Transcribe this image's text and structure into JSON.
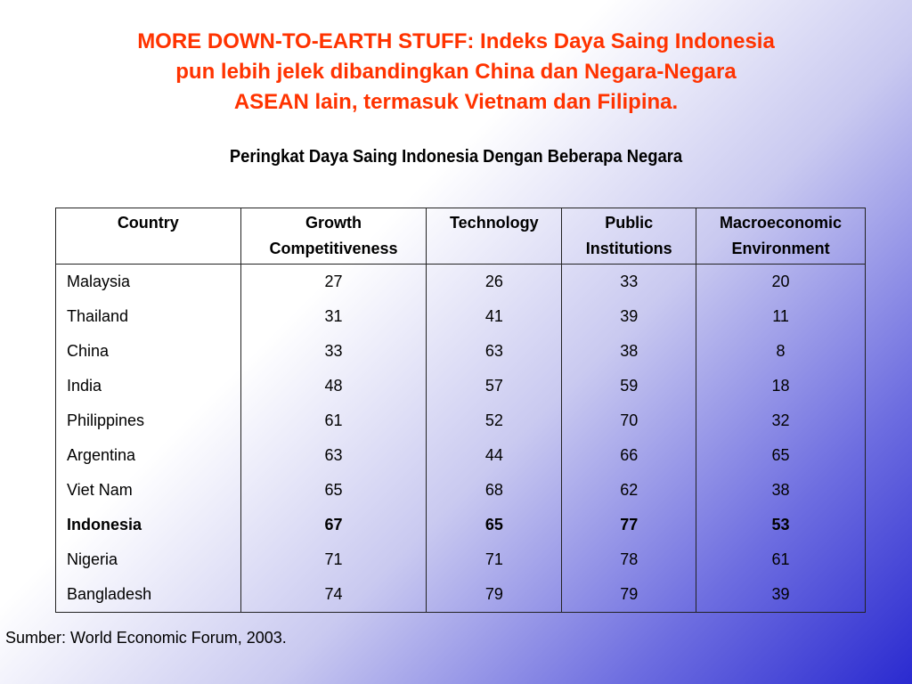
{
  "title_lines": [
    "MORE DOWN-TO-EARTH STUFF: Indeks Daya Saing Indonesia",
    "pun lebih jelek dibandingkan China dan Negara-Negara",
    "ASEAN lain, termasuk Vietnam dan Filipina."
  ],
  "subtitle": "Peringkat Daya Saing Indonesia Dengan Beberapa Negara",
  "table": {
    "headers": [
      [
        "Country"
      ],
      [
        "Growth",
        "Competitiveness"
      ],
      [
        "Technology"
      ],
      [
        "Public",
        "Institutions"
      ],
      [
        "Macroeconomic",
        "Environment"
      ]
    ],
    "rows": [
      [
        "Malaysia",
        "27",
        "26",
        "33",
        "20"
      ],
      [
        "Thailand",
        "31",
        "41",
        "39",
        "11"
      ],
      [
        "China",
        "33",
        "63",
        "38",
        "8"
      ],
      [
        "India",
        "48",
        "57",
        "59",
        "18"
      ],
      [
        "Philippines",
        "61",
        "52",
        "70",
        "32"
      ],
      [
        "Argentina",
        "63",
        "44",
        "66",
        "65"
      ],
      [
        "Viet Nam",
        "65",
        "68",
        "62",
        "38"
      ],
      [
        "Indonesia",
        "67",
        "65",
        "77",
        "53"
      ],
      [
        "Nigeria",
        "71",
        "71",
        "78",
        "61"
      ],
      [
        "Bangladesh",
        "74",
        "79",
        "79",
        "39"
      ]
    ],
    "highlight_row": "Indonesia"
  },
  "source": "Sumber: World Economic Forum, 2003.",
  "colors": {
    "title": "#ff3300",
    "gradient_end": "#2a2ad0"
  }
}
